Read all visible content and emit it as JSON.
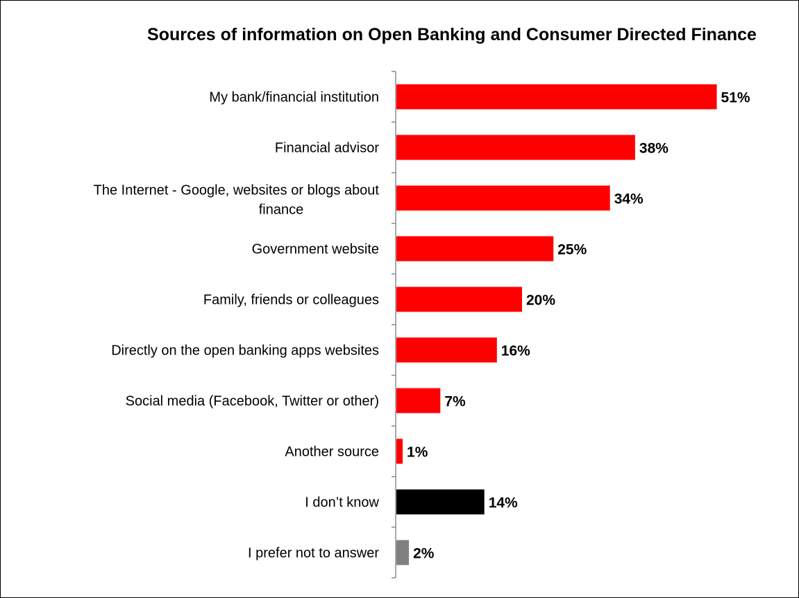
{
  "chart_data": {
    "type": "bar",
    "orientation": "horizontal",
    "title": "Sources of information on Open Banking and Consumer Directed Finance",
    "xlabel": "",
    "ylabel": "",
    "xlim": [
      0,
      60
    ],
    "grid": false,
    "legend": "none",
    "categories": [
      "My bank/financial institution",
      "Financial advisor",
      "The Internet - Google, websites or blogs about finance",
      "Government website",
      "Family, friends or colleagues",
      "Directly on the open banking apps websites",
      "Social media (Facebook, Twitter or other)",
      "Another source",
      "I don’t know",
      "I prefer not to answer"
    ],
    "values": [
      51,
      38,
      34,
      25,
      20,
      16,
      7,
      1,
      14,
      2
    ],
    "value_labels": [
      "51%",
      "38%",
      "34%",
      "25%",
      "20%",
      "16%",
      "7%",
      "1%",
      "14%",
      "2%"
    ],
    "colors": [
      "#ff0000",
      "#ff0000",
      "#ff0000",
      "#ff0000",
      "#ff0000",
      "#ff0000",
      "#ff0000",
      "#ff0000",
      "#000000",
      "#808080"
    ]
  }
}
